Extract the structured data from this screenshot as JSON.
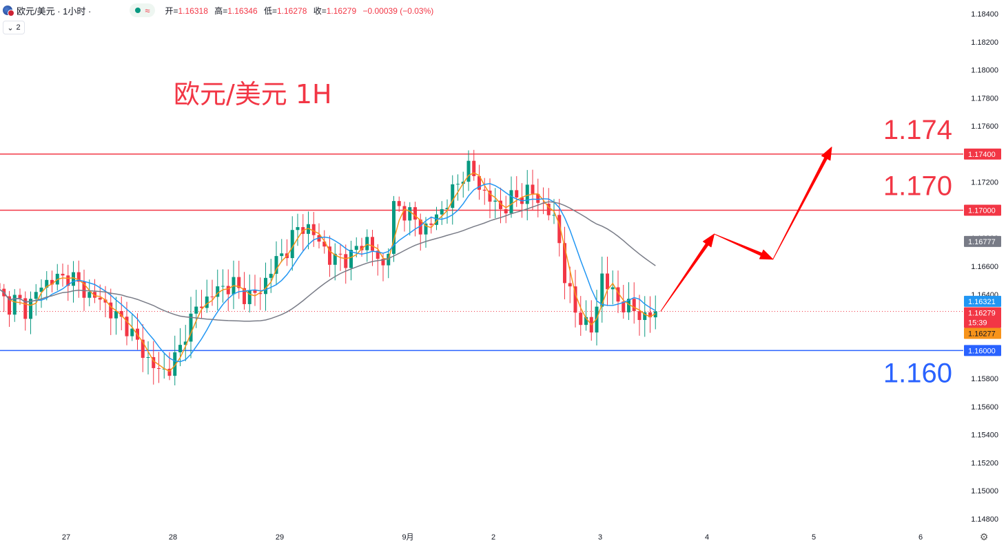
{
  "header": {
    "symbol": "欧元/美元 · 1小时 ·",
    "open_label": "开=",
    "open": "1.16318",
    "high_label": "高=",
    "high": "1.16346",
    "low_label": "低=",
    "low": "1.16278",
    "close_label": "收=",
    "close": "1.16279",
    "change": "−0.00039 (−0.03%)",
    "indicators_collapsed": "2"
  },
  "colors": {
    "up": "#089981",
    "down": "#f23645",
    "ma_fast": "#f7931a",
    "ma_mid": "#2196f3",
    "ma_slow": "#787b86",
    "resistance": "#f23645",
    "support": "#2962ff",
    "arrow": "#ff0000"
  },
  "chart_data": {
    "type": "candlestick",
    "title": "欧元/美元 1H",
    "ylim": [
      1.147,
      1.185
    ],
    "y_ticks": [
      "1.18400",
      "1.18200",
      "1.18000",
      "1.17800",
      "1.17600",
      "1.17400",
      "1.17200",
      "1.17000",
      "1.16800",
      "1.16600",
      "1.16400",
      "1.16200",
      "1.16000",
      "1.15800",
      "1.15600",
      "1.15400",
      "1.15200",
      "1.15000",
      "1.14800"
    ],
    "x_ticks": [
      {
        "label": "27",
        "index": 12
      },
      {
        "label": "28",
        "index": 32
      },
      {
        "label": "29",
        "index": 52
      },
      {
        "label": "9月",
        "index": 76
      },
      {
        "label": "2",
        "index": 92
      },
      {
        "label": "3",
        "index": 112
      },
      {
        "label": "4",
        "index": 132
      },
      {
        "label": "5",
        "index": 152
      },
      {
        "label": "6",
        "index": 172
      }
    ],
    "candles_count": 124,
    "candles_anchor_close": [
      1.1641,
      1.1632,
      1.1637,
      1.1628,
      1.164,
      1.1647,
      1.1652,
      1.165,
      1.1655,
      1.1645,
      1.164,
      1.1637,
      1.1632,
      1.1624,
      1.162,
      1.161,
      1.1599,
      1.159,
      1.1584,
      1.1588,
      1.1598,
      1.1618,
      1.163,
      1.1636,
      1.1642,
      1.1645,
      1.1648,
      1.164,
      1.1639,
      1.1641,
      1.1655,
      1.1665,
      1.1672,
      1.1685,
      1.169,
      1.1682,
      1.1676,
      1.1662,
      1.1668,
      1.1664,
      1.1676,
      1.1678,
      1.1666,
      1.1658,
      1.1705,
      1.17,
      1.1695,
      1.1686,
      1.169,
      1.1698,
      1.1708,
      1.1718,
      1.1732,
      1.1722,
      1.1712,
      1.1705,
      1.17,
      1.1708,
      1.171,
      1.1714,
      1.1707,
      1.17,
      1.169,
      1.165,
      1.1628,
      1.1622,
      1.1612,
      1.1655,
      1.1642,
      1.1635,
      1.163,
      1.1628,
      1.1622,
      1.1628
    ],
    "series": [
      {
        "name": "",
        "kind": "ma_fast"
      },
      {
        "name": "",
        "kind": "ma_mid",
        "last": 1.16321
      },
      {
        "name": "",
        "kind": "ma_slow",
        "last": 1.16777
      }
    ],
    "price_tags": [
      {
        "value": "1.17400",
        "kind": "resistance"
      },
      {
        "value": "1.17000",
        "kind": "resistance"
      },
      {
        "value": "1.16777",
        "kind": "ma_slow"
      },
      {
        "value": "1.16321",
        "kind": "ma_mid"
      },
      {
        "value": "1.16279",
        "kind": "last"
      },
      {
        "value": "15:39",
        "kind": "countdown"
      },
      {
        "value": "1.16277",
        "kind": "ma_fast"
      },
      {
        "value": "1.16000",
        "kind": "support"
      }
    ],
    "levels": [
      {
        "value": 1.174,
        "label": "1.174",
        "kind": "resistance"
      },
      {
        "value": 1.17,
        "label": "1.170",
        "kind": "resistance"
      },
      {
        "value": 1.16,
        "label": "1.160",
        "kind": "support"
      }
    ],
    "last_price": 1.16279,
    "projection": [
      {
        "index": 124,
        "price": 1.1628
      },
      {
        "index": 134,
        "price": 1.1683
      },
      {
        "index": 145,
        "price": 1.1665
      },
      {
        "index": 156,
        "price": 1.1745
      }
    ]
  }
}
